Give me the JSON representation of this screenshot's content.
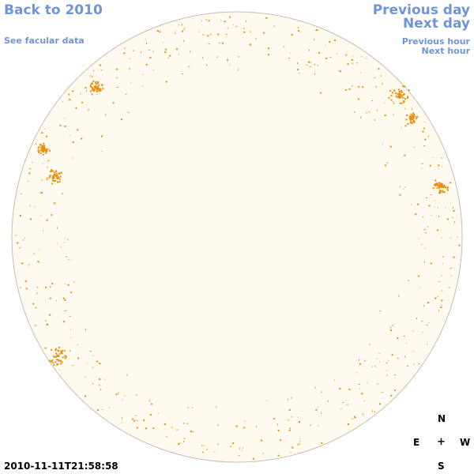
{
  "nav": {
    "back": "Back to 2010",
    "facular": "See facular data",
    "prev_day": "Previous day",
    "next_day": "Next day",
    "prev_hour": "Previous hour",
    "next_hour": "Next hour"
  },
  "timestamp": "2010-11-11T21:58:58",
  "compass": {
    "north": "N",
    "south": "S",
    "east": "E",
    "west": "W",
    "center": "+"
  },
  "colors": {
    "disk_fill": "#fffaef",
    "disk_edge": "#c8c0b0",
    "faculae": "#e8900e",
    "link": "#6f95d8"
  }
}
